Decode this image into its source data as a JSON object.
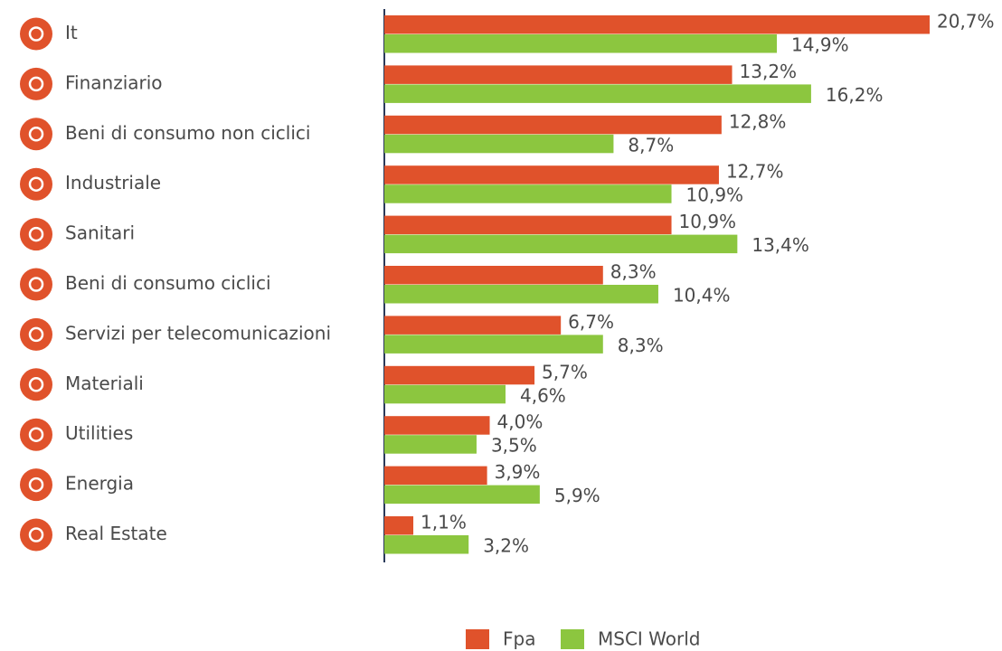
{
  "chart_data": {
    "type": "bar",
    "orientation": "horizontal",
    "categories": [
      "It",
      "Finanziario",
      "Beni di consumo non ciclici",
      "Industriale",
      "Sanitari",
      "Beni di consumo ciclici",
      "Servizi per telecomunicazioni",
      "Materiali",
      "Utilities",
      "Energia",
      "Real Estate"
    ],
    "series": [
      {
        "name": "Fpa",
        "color": "#e0522b",
        "values": [
          20.7,
          13.2,
          12.8,
          12.7,
          10.9,
          8.3,
          6.7,
          5.7,
          4.0,
          3.9,
          1.1
        ],
        "value_labels": [
          "20,7%",
          "13,2%",
          "12,8%",
          "12,7%",
          "10,9%",
          "8,3%",
          "6,7%",
          "5,7%",
          "4,0%",
          "3,9%",
          "1,1%"
        ]
      },
      {
        "name": "MSCI World",
        "color": "#8cc63f",
        "values": [
          14.9,
          16.2,
          8.7,
          10.9,
          13.4,
          10.4,
          8.3,
          4.6,
          3.5,
          5.9,
          3.2
        ],
        "value_labels": [
          "14,9%",
          "16,2%",
          "8,7%",
          "10,9%",
          "13,4%",
          "10,4%",
          "8,3%",
          "4,6%",
          "3,5%",
          "5,9%",
          "3,2%"
        ]
      }
    ],
    "legend": "bottom"
  }
}
